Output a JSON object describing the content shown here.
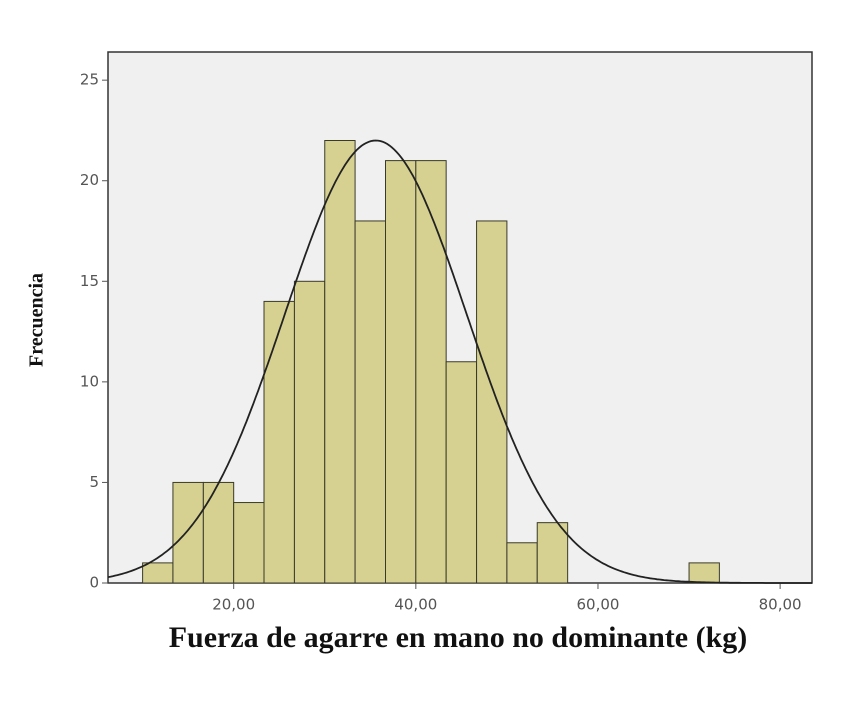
{
  "chart_data": {
    "type": "histogram",
    "x_label": "Fuerza de agarre en mano no dominante (kg)",
    "y_label": "Frecuencia",
    "bins": [
      10,
      13.33,
      16.67,
      20,
      23.33,
      26.67,
      30,
      33.33,
      36.67,
      40,
      43.33,
      46.67,
      50,
      53.33,
      56.67,
      60,
      63.33,
      66.67,
      70,
      73.33
    ],
    "values": [
      1,
      5,
      5,
      4,
      14,
      15,
      22,
      18,
      21,
      21,
      11,
      18,
      2,
      3,
      0,
      0,
      0,
      0,
      1
    ],
    "color": "#d6d190",
    "normal_curve": {
      "mean": 35.6,
      "sd": 10.0,
      "peak": 22.0
    },
    "xlim": [
      6.2,
      83.5
    ],
    "ylim": [
      0,
      26.4
    ],
    "xticks": [
      {
        "value": 20,
        "label": "20,00"
      },
      {
        "value": 40,
        "label": "40,00"
      },
      {
        "value": 60,
        "label": "60,00"
      },
      {
        "value": 80,
        "label": "80,00"
      }
    ],
    "yticks": [
      0,
      5,
      10,
      15,
      20,
      25
    ]
  }
}
